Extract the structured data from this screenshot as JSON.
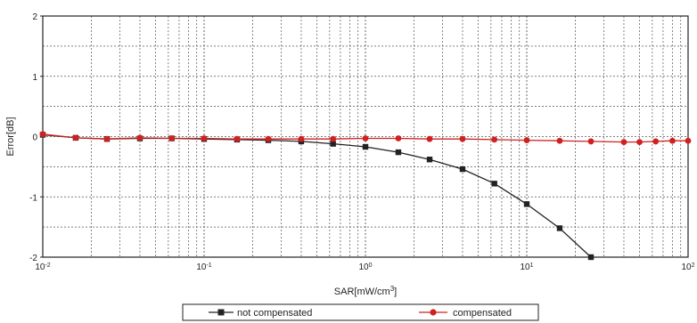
{
  "chart_data": {
    "type": "line",
    "xlabel_parts": [
      "SAR[mW/cm",
      "3",
      "]"
    ],
    "ylabel": "Error[dB]",
    "x_scale": "log",
    "xlim": [
      0.01,
      100
    ],
    "ylim": [
      -2,
      2
    ],
    "x_ticks": [
      {
        "base": "10",
        "exp": "-2"
      },
      {
        "base": "10",
        "exp": "-1"
      },
      {
        "base": "10",
        "exp": "0"
      },
      {
        "base": "10",
        "exp": "1"
      },
      {
        "base": "10",
        "exp": "2"
      }
    ],
    "y_ticks": [
      "2",
      "1",
      "0",
      "-1",
      "-2"
    ],
    "grid": true,
    "legend_position": "bottom",
    "series": [
      {
        "name": "not compensated",
        "color": "#222222",
        "marker": "square",
        "x": [
          0.01,
          0.016,
          0.025,
          0.04,
          0.063,
          0.1,
          0.16,
          0.25,
          0.4,
          0.63,
          1.0,
          1.6,
          2.5,
          4.0,
          6.3,
          10,
          16,
          25
        ],
        "y": [
          0.03,
          -0.02,
          -0.04,
          -0.03,
          -0.03,
          -0.04,
          -0.05,
          -0.06,
          -0.08,
          -0.12,
          -0.17,
          -0.26,
          -0.38,
          -0.54,
          -0.78,
          -1.12,
          -1.52,
          -2.0
        ]
      },
      {
        "name": "compensated",
        "color": "#d02020",
        "marker": "circle",
        "x": [
          0.01,
          0.016,
          0.025,
          0.04,
          0.063,
          0.1,
          0.16,
          0.25,
          0.4,
          0.63,
          1.0,
          1.6,
          2.5,
          4.0,
          6.3,
          10,
          16,
          25,
          40,
          50,
          63,
          80,
          100
        ],
        "y": [
          0.04,
          -0.02,
          -0.04,
          -0.02,
          -0.03,
          -0.03,
          -0.04,
          -0.04,
          -0.04,
          -0.04,
          -0.03,
          -0.03,
          -0.04,
          -0.04,
          -0.05,
          -0.06,
          -0.07,
          -0.08,
          -0.09,
          -0.09,
          -0.08,
          -0.07,
          -0.07
        ]
      }
    ]
  }
}
